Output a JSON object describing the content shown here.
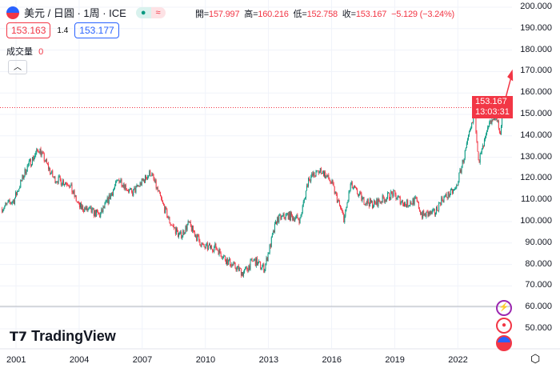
{
  "header": {
    "symbol": "美元 / 日圓 · 1周 · ICE",
    "status_symbol": "≈",
    "open_label": "開=",
    "open": "157.997",
    "high_label": "高=",
    "high": "160.216",
    "low_label": "低=",
    "low": "152.758",
    "close_label": "收=",
    "close": "153.167",
    "change": "−5.129 (−3.24%)"
  },
  "quote": {
    "bid": "153.163",
    "spread": "1.4",
    "ask": "153.177"
  },
  "volume": {
    "label": "成交量",
    "value": "0"
  },
  "price_tag": {
    "price": "153.167",
    "countdown": "13:03:31"
  },
  "logo": "TradingView",
  "colors": {
    "up": "#089981",
    "down": "#f23645"
  },
  "chart_data": {
    "type": "candlestick",
    "title": "USD/JPY weekly",
    "xlabel": "",
    "ylabel": "",
    "ylim": [
      45,
      202
    ],
    "xlim": [
      2000.2,
      2024.6
    ],
    "y_ticks": [
      "200.000",
      "190.000",
      "180.000",
      "170.000",
      "160.000",
      "150.000",
      "140.000",
      "130.000",
      "120.000",
      "110.000",
      "100.000",
      "90.000",
      "80.000",
      "70.000",
      "60.000",
      "50.000"
    ],
    "x_ticks": [
      "2001",
      "2004",
      "2007",
      "2010",
      "2013",
      "2016",
      "2019",
      "2022"
    ],
    "last_price": 153.167,
    "path": [
      [
        2000.3,
        106
      ],
      [
        2000.9,
        110
      ],
      [
        2001.5,
        125
      ],
      [
        2002.1,
        134
      ],
      [
        2002.8,
        120
      ],
      [
        2003.5,
        118
      ],
      [
        2004,
        107
      ],
      [
        2005,
        103
      ],
      [
        2005.9,
        120
      ],
      [
        2006.5,
        113
      ],
      [
        2007.4,
        123
      ],
      [
        2007.9,
        110
      ],
      [
        2008.3,
        100
      ],
      [
        2008.8,
        93
      ],
      [
        2009.2,
        99
      ],
      [
        2009.9,
        88
      ],
      [
        2010.5,
        88
      ],
      [
        2011,
        82
      ],
      [
        2011.8,
        76
      ],
      [
        2012.3,
        82
      ],
      [
        2012.8,
        78
      ],
      [
        2013.4,
        101
      ],
      [
        2013.9,
        103
      ],
      [
        2014.5,
        101
      ],
      [
        2014.9,
        120
      ],
      [
        2015.5,
        124
      ],
      [
        2016,
        118
      ],
      [
        2016.6,
        101
      ],
      [
        2016.9,
        117
      ],
      [
        2017.5,
        110
      ],
      [
        2018,
        108
      ],
      [
        2018.9,
        113
      ],
      [
        2019.5,
        108
      ],
      [
        2020,
        110
      ],
      [
        2020.3,
        103
      ],
      [
        2020.9,
        104
      ],
      [
        2021.2,
        110
      ],
      [
        2021.9,
        115
      ],
      [
        2022.8,
        150
      ],
      [
        2023,
        128
      ],
      [
        2023.5,
        145
      ],
      [
        2023.8,
        150
      ],
      [
        2024,
        141
      ],
      [
        2024.25,
        158
      ],
      [
        2024.3,
        153.167
      ]
    ]
  }
}
